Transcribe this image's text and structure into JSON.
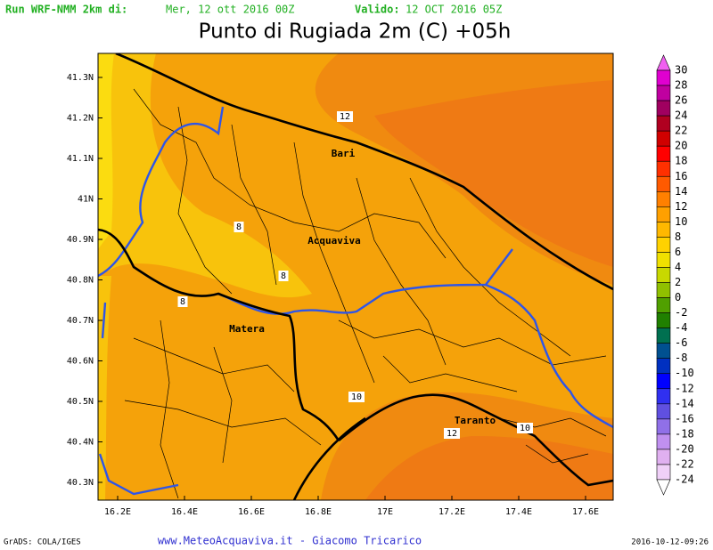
{
  "header": {
    "run_label": "Run WRF-NMM 2km di:",
    "run_date": "Mer, 12 ott 2016 00Z",
    "valid_label": "Valido:",
    "valid_date": "12 OCT 2016 05Z"
  },
  "title": "Punto di Rugiada 2m (C) +05h",
  "map": {
    "lat_labels": [
      "41.3N",
      "41.2N",
      "41.1N",
      "41N",
      "40.9N",
      "40.8N",
      "40.7N",
      "40.6N",
      "40.5N",
      "40.4N",
      "40.3N"
    ],
    "lon_labels": [
      "16.2E",
      "16.4E",
      "16.6E",
      "16.8E",
      "17E",
      "17.2E",
      "17.4E",
      "17.6E"
    ],
    "cities": [
      "Bari",
      "Acquaviva",
      "Matera",
      "Taranto"
    ],
    "contour_labels": [
      12,
      8,
      8,
      8,
      10,
      10,
      12
    ]
  },
  "colorbar": {
    "levels": [
      30,
      28,
      26,
      24,
      22,
      20,
      18,
      16,
      14,
      12,
      10,
      8,
      6,
      4,
      2,
      0,
      -2,
      -4,
      -6,
      -8,
      -10,
      -12,
      -14,
      -16,
      -18,
      -20,
      -22,
      -24
    ],
    "colors": [
      "#f060f0",
      "#e000d0",
      "#c000a0",
      "#a00060",
      "#b00020",
      "#d00000",
      "#ff0000",
      "#ff3000",
      "#ff5a00",
      "#ff8000",
      "#ffa000",
      "#ffb800",
      "#ffd200",
      "#f0e000",
      "#c8d800",
      "#90c000",
      "#50a000",
      "#208000",
      "#007050",
      "#005090",
      "#0030c0",
      "#0000ff",
      "#3030f0",
      "#6050e0",
      "#9070e8",
      "#c090f0",
      "#e0b0f0",
      "#f0d0f8",
      "#ffffff"
    ]
  },
  "footer": {
    "left": "GrADS: COLA/IGES",
    "center": "www.MeteoAcquaviva.it - Giacomo Tricarico",
    "right": "2016-10-12-09:26"
  }
}
